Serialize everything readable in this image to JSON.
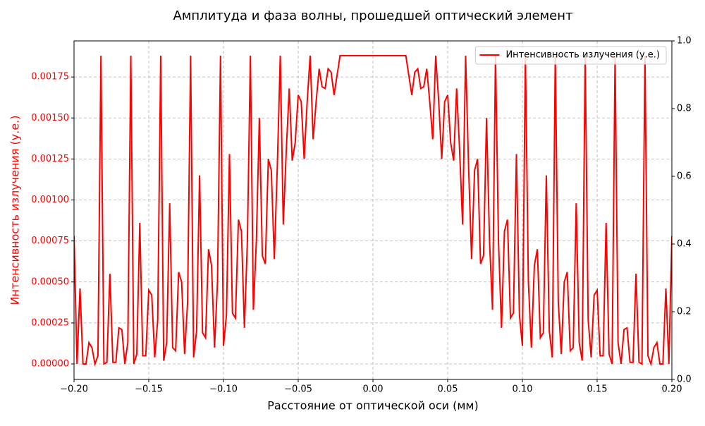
{
  "chart_data": {
    "type": "line",
    "title": "Амплитуда и фаза волны, прошедшей оптический элемент",
    "x_label": "Расстояние от оптической оси (мм)",
    "y_label": "Интенсивность излучения (у.е.)",
    "x": [
      -0.2,
      -0.198,
      -0.196,
      -0.194,
      -0.192,
      -0.19,
      -0.188,
      -0.186,
      -0.184,
      -0.182,
      -0.18,
      -0.178,
      -0.176,
      -0.174,
      -0.172,
      -0.17,
      -0.168,
      -0.166,
      -0.164,
      -0.162,
      -0.16,
      -0.158,
      -0.156,
      -0.154,
      -0.152,
      -0.15,
      -0.148,
      -0.146,
      -0.144,
      -0.142,
      -0.14,
      -0.138,
      -0.136,
      -0.134,
      -0.132,
      -0.13,
      -0.128,
      -0.126,
      -0.124,
      -0.122,
      -0.12,
      -0.118,
      -0.116,
      -0.114,
      -0.112,
      -0.11,
      -0.108,
      -0.106,
      -0.104,
      -0.102,
      -0.1,
      -0.098,
      -0.096,
      -0.094,
      -0.092,
      -0.09,
      -0.088,
      -0.086,
      -0.084,
      -0.082,
      -0.08,
      -0.078,
      -0.076,
      -0.074,
      -0.072,
      -0.07,
      -0.068,
      -0.066,
      -0.064,
      -0.062,
      -0.06,
      -0.058,
      -0.056,
      -0.054,
      -0.052,
      -0.05,
      -0.048,
      -0.046,
      -0.044,
      -0.042,
      -0.04,
      -0.038,
      -0.036,
      -0.034,
      -0.032,
      -0.03,
      -0.028,
      -0.026,
      -0.024,
      -0.022,
      -0.02,
      -0.018,
      -0.016,
      -0.014,
      -0.012,
      -0.01,
      -0.008,
      -0.006,
      -0.004,
      -0.002,
      0,
      0.002,
      0.004,
      0.006,
      0.008,
      0.01,
      0.012,
      0.014,
      0.016,
      0.018,
      0.02,
      0.022,
      0.024,
      0.026,
      0.028,
      0.03,
      0.032,
      0.034,
      0.036,
      0.038,
      0.04,
      0.042,
      0.044,
      0.046,
      0.048,
      0.05,
      0.052,
      0.054,
      0.056,
      0.058,
      0.06,
      0.062,
      0.064,
      0.066,
      0.068,
      0.07,
      0.072,
      0.074,
      0.076,
      0.078,
      0.08,
      0.082,
      0.084,
      0.086,
      0.088,
      0.09,
      0.092,
      0.094,
      0.096,
      0.098,
      0.1,
      0.102,
      0.104,
      0.106,
      0.108,
      0.11,
      0.112,
      0.114,
      0.116,
      0.118,
      0.12,
      0.122,
      0.124,
      0.126,
      0.128,
      0.13,
      0.132,
      0.134,
      0.136,
      0.138,
      0.14,
      0.142,
      0.144,
      0.146,
      0.148,
      0.15,
      0.152,
      0.154,
      0.156,
      0.158,
      0.16,
      0.162,
      0.164,
      0.166,
      0.168,
      0.17,
      0.172,
      0.174,
      0.176,
      0.178,
      0.18,
      0.182,
      0.184,
      0.186,
      0.188,
      0.19,
      0.192,
      0.194,
      0.196,
      0.198,
      0.2
    ],
    "series": [
      {
        "name": "Интенсивность излучения (у.е.)",
        "color": "#ff0000",
        "values": [
          0.00078,
          0,
          0.00046,
          0,
          0,
          0.00013,
          0.0001,
          0,
          5e-05,
          0.00188,
          0,
          1e-05,
          0.00055,
          1e-05,
          1e-05,
          0.00022,
          0.00021,
          0,
          0.00013,
          0.00188,
          0,
          6e-05,
          0.00086,
          5e-05,
          5e-05,
          0.00045,
          0.00042,
          4e-05,
          0.00027,
          0.00188,
          2e-05,
          0.00013,
          0.00098,
          0.0001,
          8e-05,
          0.00056,
          0.0005,
          6e-05,
          0.00038,
          0.00188,
          4e-05,
          0.0002,
          0.00115,
          0.00019,
          0.00016,
          0.0007,
          0.0006,
          0.0001,
          0.0005,
          0.00188,
          0.00011,
          0.0003,
          0.00128,
          0.00031,
          0.00028,
          0.00088,
          0.00081,
          0.00022,
          0.00075,
          0.00188,
          0.00033,
          0.00075,
          0.0015,
          0.00066,
          0.00061,
          0.00125,
          0.00118,
          0.00064,
          0.0012,
          0.00188,
          0.00085,
          0.0013,
          0.00168,
          0.00124,
          0.00135,
          0.00164,
          0.0016,
          0.00125,
          0.0016,
          0.00188,
          0.00137,
          0.0016,
          0.0018,
          0.00169,
          0.00168,
          0.0018,
          0.00178,
          0.00164,
          0.00176,
          0.00188,
          0.00188,
          0.00188,
          0.00188,
          0.00188,
          0.00188,
          0.00188,
          0.00188,
          0.00188,
          0.00188,
          0.00188,
          0.00188,
          0.00188,
          0.00188,
          0.00188,
          0.00188,
          0.00188,
          0.00188,
          0.00188,
          0.00188,
          0.00188,
          0.00188,
          0.00188,
          0.00176,
          0.00164,
          0.00178,
          0.0018,
          0.00168,
          0.00169,
          0.0018,
          0.0016,
          0.00137,
          0.00188,
          0.0016,
          0.00125,
          0.0016,
          0.00164,
          0.00135,
          0.00124,
          0.00168,
          0.0013,
          0.00085,
          0.00188,
          0.0012,
          0.00064,
          0.00118,
          0.00125,
          0.00061,
          0.00066,
          0.0015,
          0.00075,
          0.00033,
          0.00188,
          0.00075,
          0.00022,
          0.00081,
          0.00088,
          0.00028,
          0.00031,
          0.00128,
          0.0003,
          0.00011,
          0.00188,
          0.0005,
          0.0001,
          0.0006,
          0.0007,
          0.00016,
          0.00019,
          0.00115,
          0.0002,
          4e-05,
          0.00188,
          0.00038,
          6e-05,
          0.0005,
          0.00056,
          8e-05,
          0.0001,
          0.00098,
          0.00013,
          2e-05,
          0.00188,
          0.00027,
          4e-05,
          0.00042,
          0.00045,
          5e-05,
          5e-05,
          0.00086,
          6e-05,
          0,
          0.00188,
          0.00013,
          0,
          0.00021,
          0.00022,
          1e-05,
          1e-05,
          0.00055,
          1e-05,
          0,
          0.00188,
          5e-05,
          0,
          0.0001,
          0.00013,
          0,
          0,
          0.00046,
          0,
          0.00078
        ]
      }
    ],
    "xlim": [
      -0.2,
      0.2
    ],
    "xticks": [
      {
        "value": -0.2,
        "label": "−0.20"
      },
      {
        "value": -0.15,
        "label": "−0.15"
      },
      {
        "value": -0.1,
        "label": "−0.10"
      },
      {
        "value": -0.05,
        "label": "−0.05"
      },
      {
        "value": 0,
        "label": "0.00"
      },
      {
        "value": 0.05,
        "label": "0.05"
      },
      {
        "value": 0.1,
        "label": "0.10"
      },
      {
        "value": 0.15,
        "label": "0.15"
      },
      {
        "value": 0.2,
        "label": "0.20"
      }
    ],
    "ylim": [
      -9.45e-05,
      0.00197
    ],
    "yticks": [
      {
        "value": 0,
        "label": "0.00000"
      },
      {
        "value": 0.00025,
        "label": "0.00025"
      },
      {
        "value": 0.0005,
        "label": "0.00050"
      },
      {
        "value": 0.00075,
        "label": "0.00075"
      },
      {
        "value": 0.001,
        "label": "0.00100"
      },
      {
        "value": 0.00125,
        "label": "0.00125"
      },
      {
        "value": 0.0015,
        "label": "0.00150"
      },
      {
        "value": 0.00175,
        "label": "0.00175"
      }
    ],
    "y2lim": [
      0,
      1
    ],
    "y2ticks": [
      {
        "value": 0,
        "label": "0.0"
      },
      {
        "value": 0.2,
        "label": "0.2"
      },
      {
        "value": 0.4,
        "label": "0.4"
      },
      {
        "value": 0.6,
        "label": "0.6"
      },
      {
        "value": 0.8,
        "label": "0.8"
      },
      {
        "value": 1,
        "label": "1.0"
      }
    ],
    "grid": true,
    "legend": "upper right",
    "y_axis_color": "#ff0000"
  }
}
